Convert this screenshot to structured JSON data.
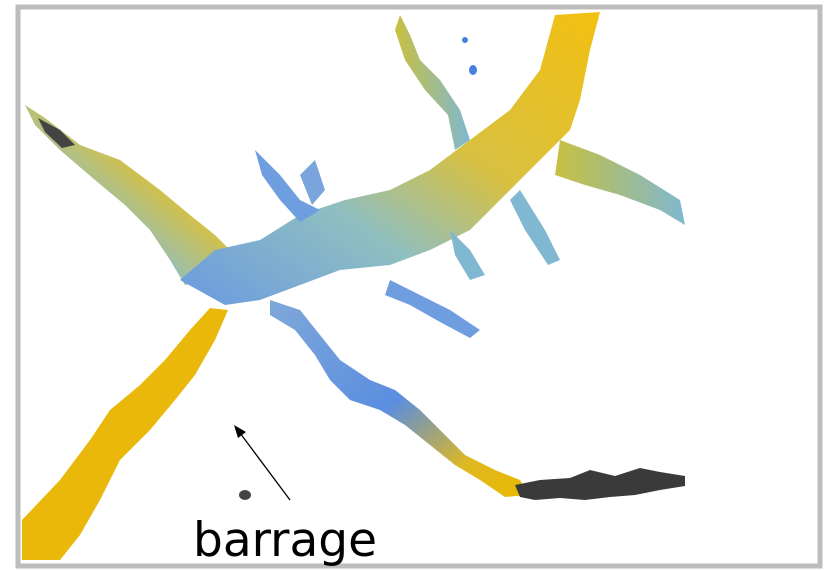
{
  "annotation": "barrage"
}
